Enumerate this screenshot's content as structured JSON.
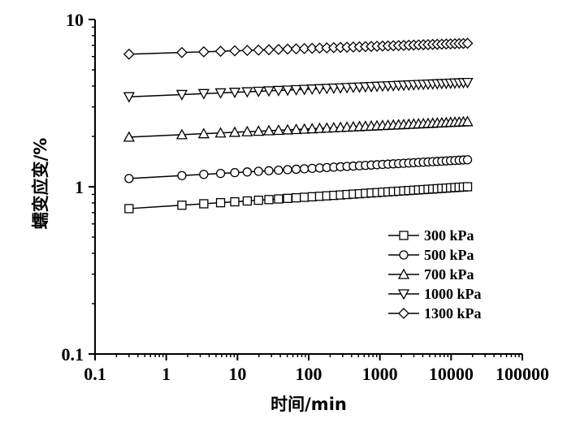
{
  "chart_data": {
    "type": "line",
    "xlabel": "时间/min",
    "ylabel": "蠕变应变/%",
    "x_scale": "log",
    "y_scale": "log",
    "xlim": [
      0.1,
      100000
    ],
    "ylim": [
      0.1,
      10
    ],
    "x_ticks": [
      "0.1",
      "1",
      "10",
      "100",
      "1000",
      "10000",
      "100000"
    ],
    "y_ticks": [
      "0.1",
      "1",
      "10"
    ],
    "grid": false,
    "legend_position": "bottom-right",
    "series": [
      {
        "name": "300 kPa",
        "marker": "square",
        "start": [
          0.3,
          0.74
        ],
        "end": [
          17000,
          1.0
        ],
        "points": 42
      },
      {
        "name": "500 kPa",
        "marker": "circle",
        "start": [
          0.3,
          1.12
        ],
        "end": [
          17000,
          1.45
        ],
        "points": 42
      },
      {
        "name": "700 kPa",
        "marker": "triangle-up",
        "start": [
          0.3,
          1.98
        ],
        "end": [
          17000,
          2.45
        ],
        "points": 42
      },
      {
        "name": "1000 kPa",
        "marker": "triangle-down",
        "start": [
          0.3,
          3.45
        ],
        "end": [
          17000,
          4.2
        ],
        "points": 42
      },
      {
        "name": "1300 kPa",
        "marker": "diamond",
        "start": [
          0.3,
          6.2
        ],
        "end": [
          17000,
          7.2
        ],
        "points": 42
      }
    ]
  }
}
